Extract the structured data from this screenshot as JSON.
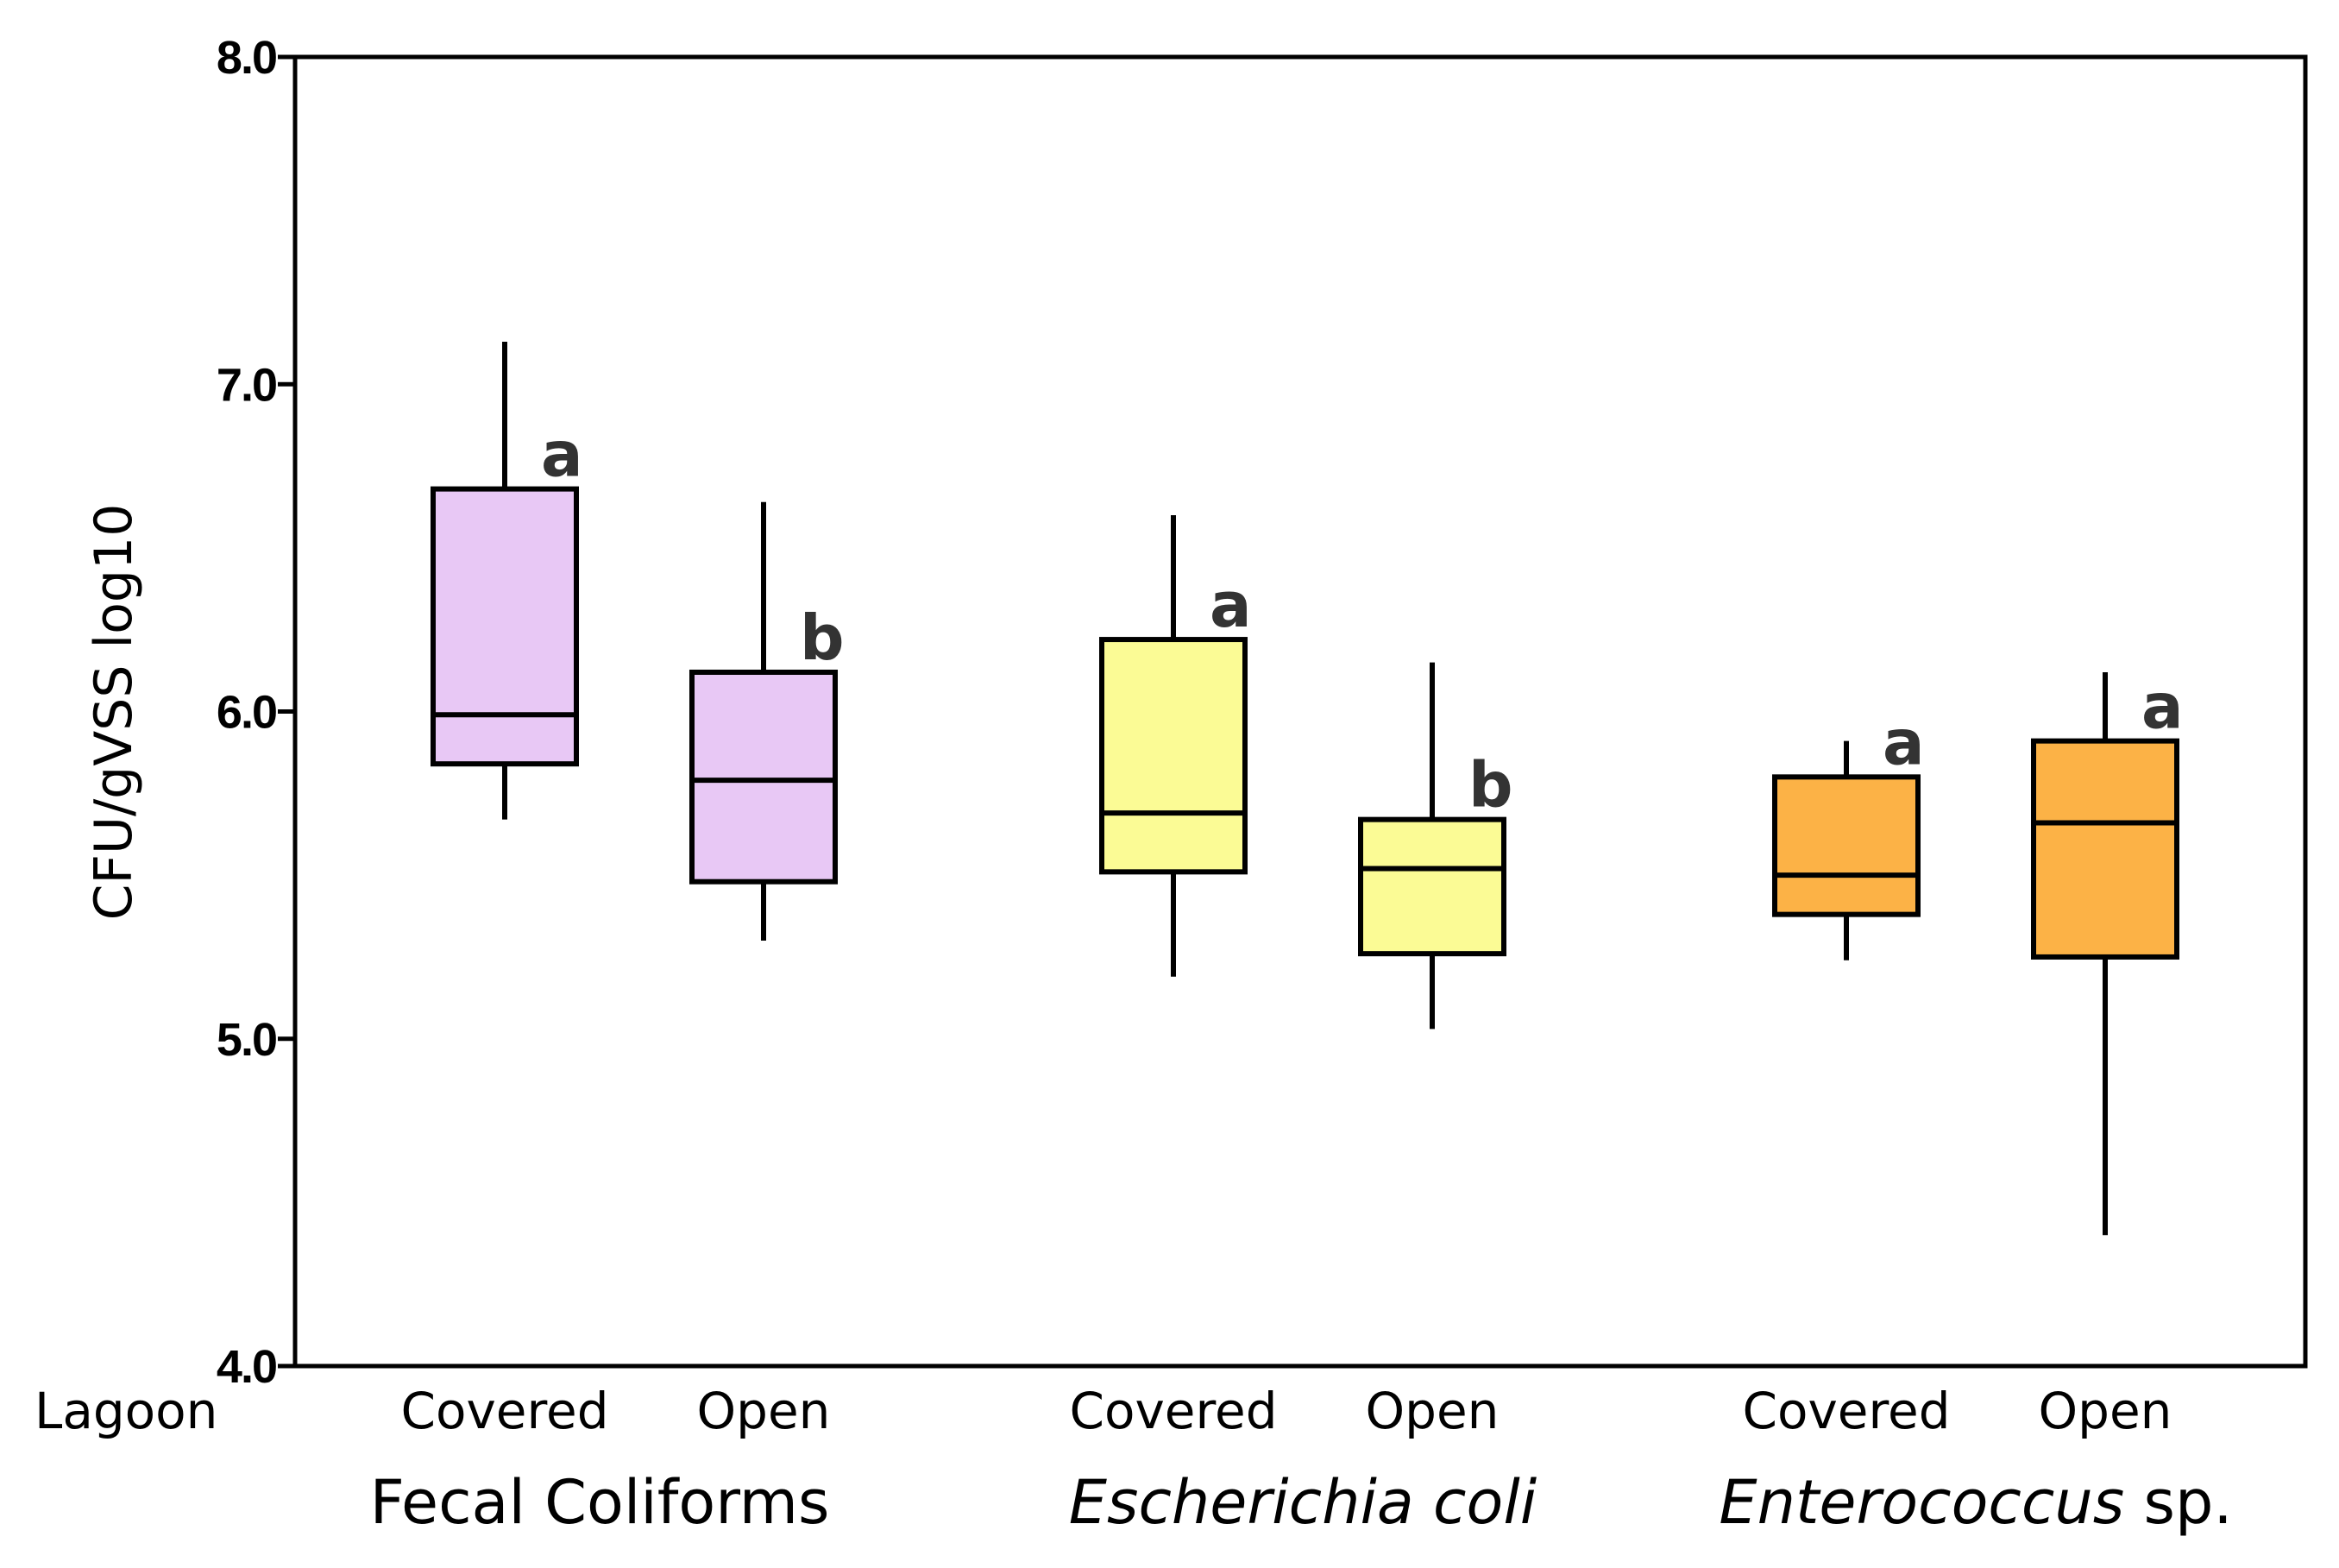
{
  "chart_data": {
    "type": "box",
    "ylabel": "CFU/gVSS log10",
    "ylim": [
      4.0,
      8.0
    ],
    "yticks": [
      "4.0",
      "5.0",
      "6.0",
      "7.0",
      "8.0"
    ],
    "row_label": "Lagoon",
    "grid": false,
    "groups": [
      {
        "name": "Fecal Coliforms",
        "italic_part": "",
        "plain_part": "Fecal Coliforms",
        "color": "#e8c8f5",
        "boxes": [
          {
            "label": "Covered",
            "min": 5.67,
            "q1": 5.84,
            "median": 5.99,
            "q3": 6.68,
            "max": 7.13,
            "sig": "a"
          },
          {
            "label": "Open",
            "min": 5.3,
            "q1": 5.48,
            "median": 5.79,
            "q3": 6.12,
            "max": 6.64,
            "sig": "b"
          }
        ]
      },
      {
        "name": "Escherichia coli",
        "italic_part": "Escherichia coli",
        "plain_part": "",
        "color": "#fbfb95",
        "boxes": [
          {
            "label": "Covered",
            "min": 5.19,
            "q1": 5.51,
            "median": 5.69,
            "q3": 6.22,
            "max": 6.6,
            "sig": "a"
          },
          {
            "label": "Open",
            "min": 5.03,
            "q1": 5.26,
            "median": 5.52,
            "q3": 5.67,
            "max": 6.15,
            "sig": "b"
          }
        ]
      },
      {
        "name": "Enterococcus sp.",
        "italic_part": "Enterococcus",
        "plain_part": " sp.",
        "color": "#fcb246",
        "boxes": [
          {
            "label": "Covered",
            "min": 5.24,
            "q1": 5.38,
            "median": 5.5,
            "q3": 5.8,
            "max": 5.91,
            "sig": "a"
          },
          {
            "label": "Open",
            "min": 4.4,
            "q1": 5.25,
            "median": 5.66,
            "q3": 5.91,
            "max": 6.12,
            "sig": "a"
          }
        ]
      }
    ]
  }
}
